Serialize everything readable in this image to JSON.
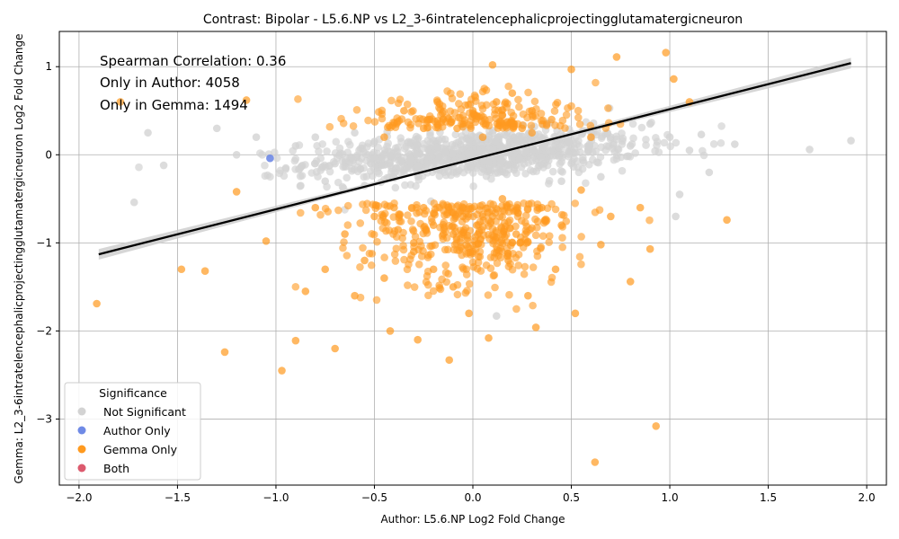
{
  "chart_data": {
    "type": "scatter",
    "title": "Contrast: Bipolar - L5.6.NP vs L2_3-6intratelencephalicprojectingglutamatergicneuron",
    "xlabel": "Author: L5.6.NP Log2 Fold Change",
    "ylabel": "Gemma: L2_3-6intratelencephalicprojectingglutamatergicneuron Log2 Fold Change",
    "xlim": [
      -2.1,
      2.1
    ],
    "ylim": [
      -3.75,
      1.4
    ],
    "x_ticks": [
      -2.0,
      -1.5,
      -1.0,
      -0.5,
      0.0,
      0.5,
      1.0,
      1.5,
      2.0
    ],
    "x_tick_labels": [
      "−2.0",
      "−1.5",
      "−1.0",
      "−0.5",
      "0.0",
      "0.5",
      "1.0",
      "1.5",
      "2.0"
    ],
    "y_ticks": [
      1,
      0,
      -1,
      -2,
      -3
    ],
    "y_tick_labels": [
      "1",
      "0",
      "−1",
      "−2",
      "−3"
    ],
    "grid": true,
    "annotations": [
      "Spearman Correlation: 0.36",
      "Only in Author: 4058",
      "Only in Gemma: 1494"
    ],
    "legend": {
      "title": "Significance",
      "placement": "lower-left",
      "entries": [
        {
          "name": "Not Significant",
          "color": "#d3d3d3"
        },
        {
          "name": "Author Only",
          "color": "#6f8ae6"
        },
        {
          "name": "Gemma Only",
          "color": "#ff9a1f"
        },
        {
          "name": "Both",
          "color": "#dc5a6e"
        }
      ]
    },
    "regression": {
      "x": [
        -1.9,
        1.92
      ],
      "y": [
        -1.13,
        1.04
      ],
      "color": "#000000",
      "ci_color": "#cccccc"
    },
    "series": [
      {
        "name": "Not Significant",
        "color": "#d3d3d3",
        "points": [
          [
            -0.9,
            0.1
          ],
          [
            -0.8,
            0.2
          ],
          [
            -0.7,
            -0.1
          ],
          [
            -0.6,
            0.25
          ],
          [
            -0.5,
            0.15
          ],
          [
            -0.4,
            -0.2
          ],
          [
            -0.3,
            0.1
          ],
          [
            -0.2,
            0.05
          ],
          [
            -0.1,
            -0.1
          ],
          [
            0.0,
            0.0
          ],
          [
            0.1,
            0.1
          ],
          [
            0.2,
            -0.05
          ],
          [
            0.3,
            0.2
          ],
          [
            0.4,
            0.15
          ],
          [
            0.5,
            -0.1
          ],
          [
            0.6,
            0.3
          ],
          [
            0.7,
            0.2
          ],
          [
            0.8,
            0.1
          ],
          [
            0.9,
            0.35
          ],
          [
            1.0,
            0.2
          ],
          [
            1.1,
            0.05
          ],
          [
            1.2,
            -0.2
          ],
          [
            -1.1,
            0.2
          ],
          [
            -1.2,
            0.0
          ],
          [
            -1.3,
            0.3
          ],
          [
            -1.65,
            0.25
          ],
          [
            -1.57,
            -0.12
          ],
          [
            -1.72,
            -0.54
          ],
          [
            1.71,
            0.06
          ],
          [
            1.92,
            0.16
          ],
          [
            1.33,
            0.12
          ],
          [
            1.16,
            0.23
          ],
          [
            1.03,
            -0.7
          ],
          [
            0.12,
            -1.83
          ],
          [
            -0.75,
            -0.3
          ],
          [
            -0.55,
            -0.35
          ],
          [
            0.45,
            -0.3
          ],
          [
            0.65,
            -0.25
          ],
          [
            -0.95,
            -0.15
          ],
          [
            1.05,
            -0.45
          ]
        ]
      },
      {
        "name": "Author Only",
        "color": "#6f8ae6",
        "points": [
          [
            -1.03,
            -0.04
          ]
        ]
      },
      {
        "name": "Gemma Only",
        "color": "#ff9a1f",
        "points": [
          [
            -1.91,
            -1.69
          ],
          [
            -1.79,
            0.6
          ],
          [
            -1.48,
            -1.3
          ],
          [
            -1.36,
            -1.32
          ],
          [
            -1.26,
            -2.24
          ],
          [
            -1.2,
            -0.42
          ],
          [
            -1.15,
            0.62
          ],
          [
            -1.05,
            -0.98
          ],
          [
            -0.97,
            -2.45
          ],
          [
            -0.9,
            -2.11
          ],
          [
            -0.85,
            -1.55
          ],
          [
            -0.8,
            -0.6
          ],
          [
            -0.75,
            -1.3
          ],
          [
            -0.7,
            -2.2
          ],
          [
            -0.65,
            -0.9
          ],
          [
            -0.6,
            -1.6
          ],
          [
            -0.55,
            -1.2
          ],
          [
            -0.5,
            -0.7
          ],
          [
            -0.45,
            -1.4
          ],
          [
            -0.42,
            -2.0
          ],
          [
            -0.38,
            -0.85
          ],
          [
            -0.35,
            0.5
          ],
          [
            -0.3,
            -1.1
          ],
          [
            -0.28,
            -2.1
          ],
          [
            -0.25,
            -0.6
          ],
          [
            -0.22,
            0.4
          ],
          [
            -0.2,
            -1.3
          ],
          [
            -0.18,
            0.6
          ],
          [
            -0.15,
            -0.9
          ],
          [
            -0.12,
            -2.33
          ],
          [
            -0.1,
            -1.5
          ],
          [
            -0.08,
            0.3
          ],
          [
            -0.05,
            -0.7
          ],
          [
            -0.02,
            -1.8
          ],
          [
            0.0,
            0.5
          ],
          [
            0.02,
            -0.8
          ],
          [
            0.05,
            0.2
          ],
          [
            0.08,
            -2.08
          ],
          [
            0.1,
            1.02
          ],
          [
            0.12,
            0.6
          ],
          [
            0.15,
            -0.5
          ],
          [
            0.18,
            -1.2
          ],
          [
            0.2,
            0.7
          ],
          [
            0.22,
            -0.9
          ],
          [
            0.25,
            0.3
          ],
          [
            0.28,
            -1.6
          ],
          [
            0.3,
            0.5
          ],
          [
            0.32,
            -1.96
          ],
          [
            0.35,
            -0.6
          ],
          [
            0.4,
            0.4
          ],
          [
            0.42,
            -1.3
          ],
          [
            0.45,
            -0.8
          ],
          [
            0.5,
            0.97
          ],
          [
            0.52,
            -1.8
          ],
          [
            0.55,
            -0.4
          ],
          [
            0.6,
            0.2
          ],
          [
            0.62,
            -3.49
          ],
          [
            0.65,
            -1.02
          ],
          [
            0.7,
            -0.7
          ],
          [
            0.73,
            1.11
          ],
          [
            0.8,
            -1.44
          ],
          [
            0.85,
            -0.6
          ],
          [
            0.9,
            -1.07
          ],
          [
            0.93,
            -3.08
          ],
          [
            0.98,
            1.16
          ],
          [
            1.02,
            0.86
          ],
          [
            1.1,
            0.6
          ],
          [
            1.29,
            -0.74
          ],
          [
            -0.3,
            -1.0
          ],
          [
            -0.1,
            -0.9
          ],
          [
            0.1,
            -0.7
          ],
          [
            -0.4,
            -0.6
          ],
          [
            0.0,
            -1.1
          ],
          [
            -0.2,
            -0.8
          ],
          [
            0.2,
            -1.0
          ],
          [
            -0.05,
            0.35
          ],
          [
            0.15,
            0.45
          ],
          [
            0.3,
            0.25
          ],
          [
            -0.25,
            0.3
          ],
          [
            -0.45,
            0.2
          ]
        ]
      },
      {
        "name": "Both",
        "color": "#dc5a6e",
        "points": []
      }
    ]
  }
}
